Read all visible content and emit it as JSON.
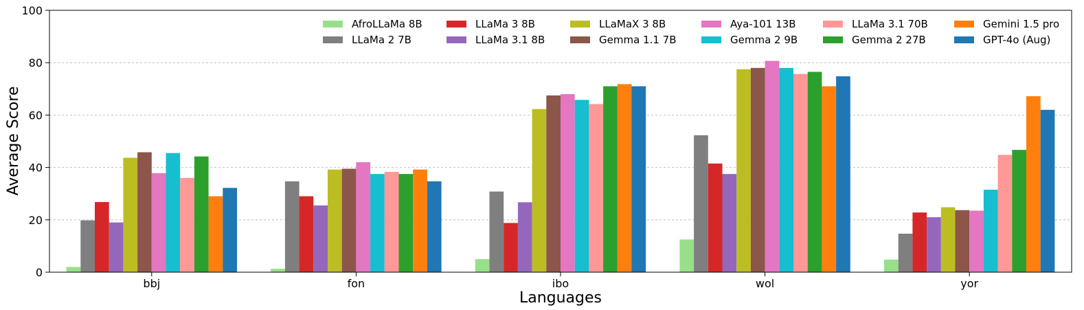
{
  "chart_data": {
    "type": "bar",
    "title": "",
    "xlabel": "Languages",
    "ylabel": "Average Score",
    "ylim": [
      0,
      100
    ],
    "yticks": [
      0,
      20,
      40,
      60,
      80,
      100
    ],
    "grid": "horizontal-dashed",
    "legend_position": "top-right",
    "categories": [
      "bbj",
      "fon",
      "ibo",
      "wol",
      "yor"
    ],
    "series": [
      {
        "name": "AfroLLaMa 8B",
        "color": "#98df8a",
        "values": [
          2.0,
          1.3,
          5.0,
          12.5,
          4.8
        ]
      },
      {
        "name": "LLaMa 2 7B",
        "color": "#7f7f7f",
        "values": [
          19.8,
          34.7,
          30.8,
          52.3,
          14.7
        ]
      },
      {
        "name": "LLaMa 3 8B",
        "color": "#d62728",
        "values": [
          26.8,
          29.0,
          18.8,
          41.5,
          22.8
        ]
      },
      {
        "name": "LLaMa 3.1 8B",
        "color": "#9467bd",
        "values": [
          19.0,
          25.5,
          26.7,
          37.5,
          21.0
        ]
      },
      {
        "name": "LLaMaX 3 8B",
        "color": "#bcbd22",
        "values": [
          43.7,
          39.2,
          62.3,
          77.5,
          24.8
        ]
      },
      {
        "name": "Gemma 1.1 7B",
        "color": "#8c564b",
        "values": [
          45.8,
          39.5,
          67.5,
          78.0,
          23.7
        ]
      },
      {
        "name": "Aya-101 13B",
        "color": "#e377c2",
        "values": [
          37.8,
          42.0,
          68.0,
          80.7,
          23.5
        ]
      },
      {
        "name": "Gemma 2 9B",
        "color": "#17becf",
        "values": [
          45.5,
          37.5,
          65.8,
          78.0,
          31.5
        ]
      },
      {
        "name": "LLaMa 3.1 70B",
        "color": "#ff9896",
        "values": [
          36.0,
          38.3,
          64.2,
          75.7,
          44.8
        ]
      },
      {
        "name": "Gemma 2 27B",
        "color": "#2ca02c",
        "values": [
          44.2,
          37.5,
          71.0,
          76.5,
          46.7
        ]
      },
      {
        "name": "Gemini 1.5 pro",
        "color": "#ff7f0e",
        "values": [
          29.0,
          39.2,
          71.8,
          71.0,
          67.2
        ]
      },
      {
        "name": "GPT-4o (Aug)",
        "color": "#1f77b4",
        "values": [
          32.2,
          34.7,
          71.0,
          74.8,
          62.0
        ]
      }
    ]
  }
}
